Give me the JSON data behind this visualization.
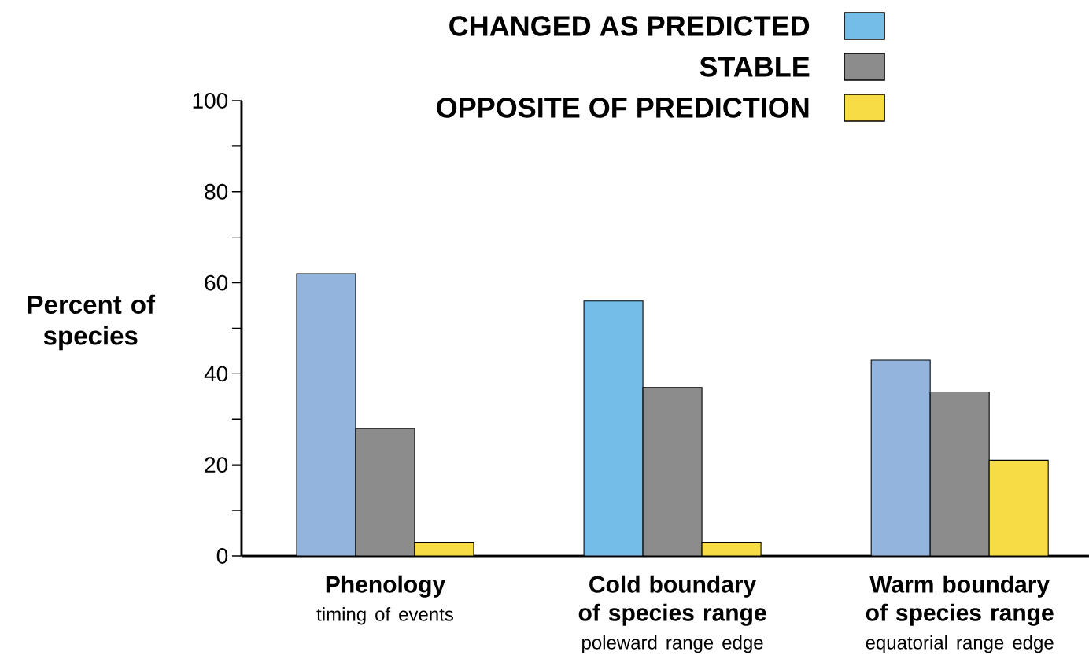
{
  "chart_data": {
    "type": "bar",
    "ylabel": "Percent of species",
    "categories": [
      "Phenology",
      "Cold boundary of species range",
      "Warm boundary of species range"
    ],
    "annotations": [
      "timing of events",
      "poleward range edge",
      "equatorial range edge"
    ],
    "series": [
      {
        "name": "CHANGED AS PREDICTED",
        "color": "#74bde8",
        "colors": [
          "#93b5dd",
          "#74bde8",
          "#93b5dd"
        ],
        "values": [
          62,
          56,
          43
        ]
      },
      {
        "name": "STABLE",
        "color": "#8c8c8c",
        "colors": [
          "#8c8c8c",
          "#8c8c8c",
          "#8c8c8c"
        ],
        "values": [
          28,
          37,
          36
        ]
      },
      {
        "name": "OPPOSITE OF PREDICTION",
        "color": "#f7dc45",
        "colors": [
          "#f7dc45",
          "#f7dc45",
          "#f7dc45"
        ],
        "values": [
          3,
          3,
          21
        ]
      }
    ],
    "ylim": [
      0,
      100
    ],
    "yticks": [
      0,
      {
        "value": 10,
        "label": null
      },
      20,
      {
        "value": 30,
        "label": null
      },
      40,
      {
        "value": 50,
        "label": null
      },
      60,
      {
        "value": 70,
        "label": null
      },
      80,
      {
        "value": 90,
        "label": null
      },
      100
    ],
    "legend": "top"
  }
}
